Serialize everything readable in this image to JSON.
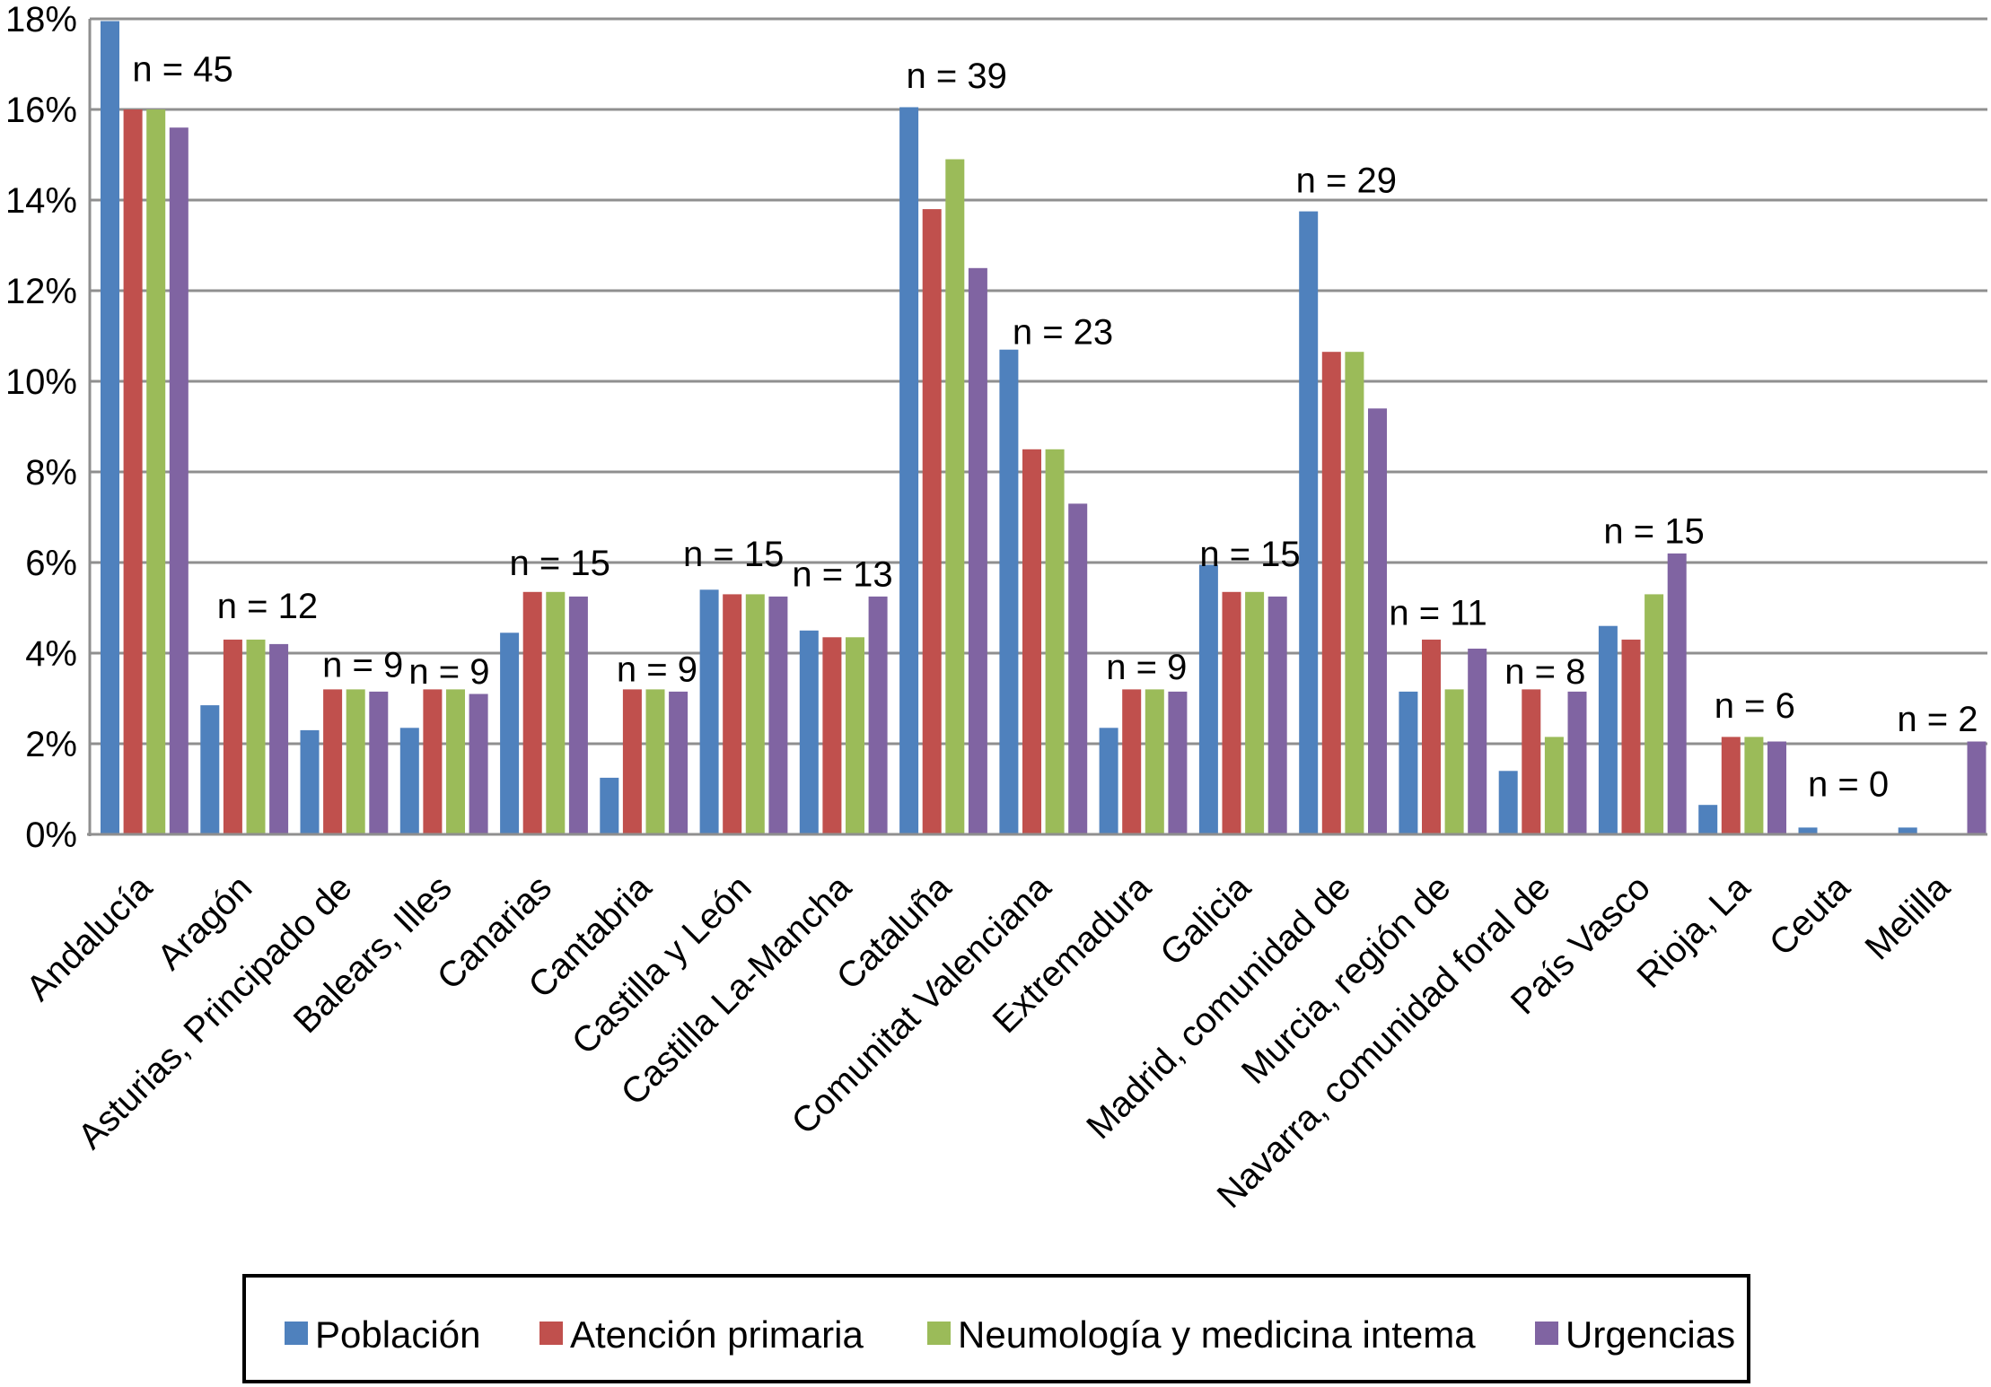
{
  "chart_data": {
    "type": "bar",
    "title": "",
    "xlabel": "",
    "ylabel": "",
    "ylim": [
      0,
      18
    ],
    "ytick_step": 2,
    "ytick_labels": [
      "0%",
      "2%",
      "4%",
      "6%",
      "8%",
      "10%",
      "12%",
      "14%",
      "16%",
      "18%"
    ],
    "grid": true,
    "legend_position": "bottom-boxed",
    "axis_color": "#8f8f8f",
    "categories": [
      "Andalucía",
      "Aragón",
      "Asturias, Principado de",
      "Balears, Illes",
      "Canarias",
      "Cantabria",
      "Castilla y León",
      "Castilla La-Mancha",
      "Cataluña",
      "Comunitat Valenciana",
      "Extremadura",
      "Galicia",
      "Madrid, comunidad de",
      "Murcia, región de",
      "Navarra, comunidad foral de",
      "País Vasco",
      "Rioja, La",
      "Ceuta",
      "Melilla"
    ],
    "series": [
      {
        "name": "Población",
        "color": "#4f81bd",
        "values": [
          17.95,
          2.85,
          2.3,
          2.35,
          4.45,
          1.25,
          5.4,
          4.5,
          16.05,
          10.7,
          2.35,
          5.95,
          13.75,
          3.15,
          1.4,
          4.6,
          0.65,
          0.15,
          0.15
        ]
      },
      {
        "name": "Atención primaria",
        "color": "#c0504d",
        "values": [
          16.0,
          4.3,
          3.2,
          3.2,
          5.35,
          3.2,
          5.3,
          4.35,
          13.8,
          8.5,
          3.2,
          5.35,
          10.65,
          4.3,
          3.2,
          4.3,
          2.15,
          0,
          0
        ]
      },
      {
        "name": "Neumología y medicina intema",
        "color": "#9bbb59",
        "values": [
          16.0,
          4.3,
          3.2,
          3.2,
          5.35,
          3.2,
          5.3,
          4.35,
          14.9,
          8.5,
          3.2,
          5.35,
          10.65,
          3.2,
          2.15,
          5.3,
          2.15,
          0,
          0
        ]
      },
      {
        "name": "Urgencias",
        "color": "#8064a2",
        "values": [
          15.6,
          4.2,
          3.15,
          3.1,
          5.25,
          3.15,
          5.25,
          5.25,
          12.5,
          7.3,
          3.15,
          5.25,
          9.4,
          4.1,
          3.15,
          6.2,
          2.05,
          0,
          2.05
        ]
      }
    ],
    "annotations": [
      {
        "label": "n = 45",
        "group": 0,
        "y": 16.9,
        "dx": 48
      },
      {
        "label": "n = 12",
        "group": 1,
        "y": 5.05,
        "dx": 31
      },
      {
        "label": "n = 9",
        "group": 2,
        "y": 3.75,
        "dx": 26
      },
      {
        "label": "n = 9",
        "group": 3,
        "y": 3.6,
        "dx": 11
      },
      {
        "label": "n = 15",
        "group": 4,
        "y": 6.0,
        "dx": 23
      },
      {
        "label": "n = 9",
        "group": 5,
        "y": 3.65,
        "dx": 20
      },
      {
        "label": "n = 15",
        "group": 6,
        "y": 6.2,
        "dx": -6
      },
      {
        "label": "n = 13",
        "group": 7,
        "y": 5.75,
        "dx": 4
      },
      {
        "label": "n = 39",
        "group": 8,
        "y": 16.75,
        "dx": 20
      },
      {
        "label": "n = 23",
        "group": 9,
        "y": 11.1,
        "dx": 27
      },
      {
        "label": "n = 9",
        "group": 10,
        "y": 3.7,
        "dx": 9
      },
      {
        "label": "n = 15",
        "group": 11,
        "y": 6.2,
        "dx": 13
      },
      {
        "label": "n = 29",
        "group": 12,
        "y": 14.45,
        "dx": 9
      },
      {
        "label": "n = 11",
        "group": 13,
        "y": 4.9,
        "dx": 0
      },
      {
        "label": "n = 8",
        "group": 14,
        "y": 3.6,
        "dx": 8
      },
      {
        "label": "n = 15",
        "group": 15,
        "y": 6.7,
        "dx": 18
      },
      {
        "label": "n = 6",
        "group": 16,
        "y": 2.85,
        "dx": 19
      },
      {
        "label": "n = 0",
        "group": 17,
        "y": 1.12,
        "dx": 12
      },
      {
        "label": "n = 2",
        "group": 18,
        "y": 2.55,
        "dx": 0
      }
    ]
  }
}
